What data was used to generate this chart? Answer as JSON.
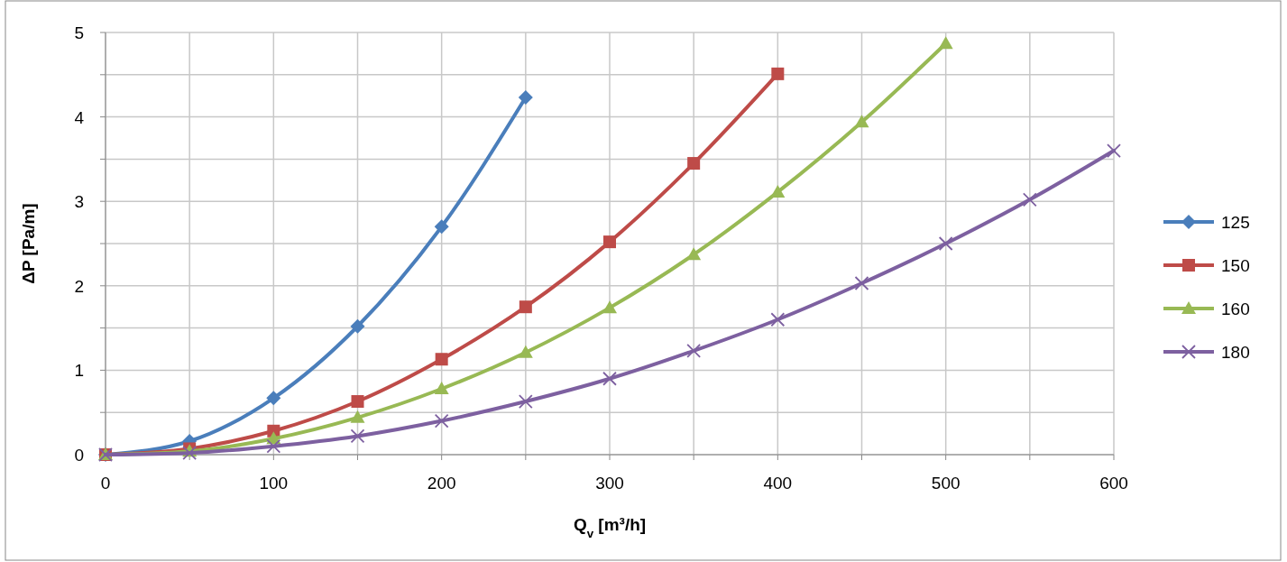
{
  "chart_data": {
    "type": "line",
    "xlabel": "Q$_{v}$ [m³/h]",
    "ylabel": "ΔP [Pa/m]",
    "xlim": [
      0,
      600
    ],
    "xticks": [
      0,
      {
        "value": 50,
        "label": null
      },
      100,
      {
        "value": 150,
        "label": null
      },
      200,
      {
        "value": 250,
        "label": null
      },
      300,
      {
        "value": 350,
        "label": null
      },
      400,
      {
        "value": 450,
        "label": null
      },
      500,
      {
        "value": 550,
        "label": null
      },
      600
    ],
    "ylim": [
      0,
      5
    ],
    "yticks": [
      0,
      {
        "value": 0.5,
        "label": null
      },
      1,
      {
        "value": 1.5,
        "label": null
      },
      2,
      {
        "value": 2.5,
        "label": null
      },
      3,
      {
        "value": 3.5,
        "label": null
      },
      4,
      {
        "value": 4.5,
        "label": null
      },
      5
    ],
    "grid": true,
    "legend": "right",
    "series": [
      {
        "name": "125",
        "color": "#4a7ebb",
        "marker": "diamond",
        "x": [
          0,
          50,
          100,
          150,
          200,
          250
        ],
        "values": [
          0,
          0.16,
          0.67,
          1.52,
          2.7,
          4.23
        ]
      },
      {
        "name": "150",
        "color": "#be4b48",
        "marker": "square",
        "x": [
          0,
          50,
          100,
          150,
          200,
          250,
          300,
          350,
          400
        ],
        "values": [
          0,
          0.07,
          0.28,
          0.63,
          1.13,
          1.75,
          2.52,
          3.45,
          4.51
        ]
      },
      {
        "name": "160",
        "color": "#98b954",
        "marker": "triangle",
        "x": [
          0,
          50,
          100,
          150,
          200,
          250,
          300,
          350,
          400,
          450,
          500
        ],
        "values": [
          0,
          0.04,
          0.19,
          0.44,
          0.78,
          1.21,
          1.74,
          2.37,
          3.11,
          3.94,
          4.87
        ]
      },
      {
        "name": "180",
        "color": "#7d60a0",
        "marker": "cross",
        "x": [
          0,
          50,
          100,
          150,
          200,
          250,
          300,
          350,
          400,
          450,
          500,
          550,
          600
        ],
        "values": [
          0,
          0.02,
          0.1,
          0.22,
          0.4,
          0.63,
          0.9,
          1.23,
          1.6,
          2.03,
          2.5,
          3.02,
          3.6
        ]
      }
    ]
  }
}
